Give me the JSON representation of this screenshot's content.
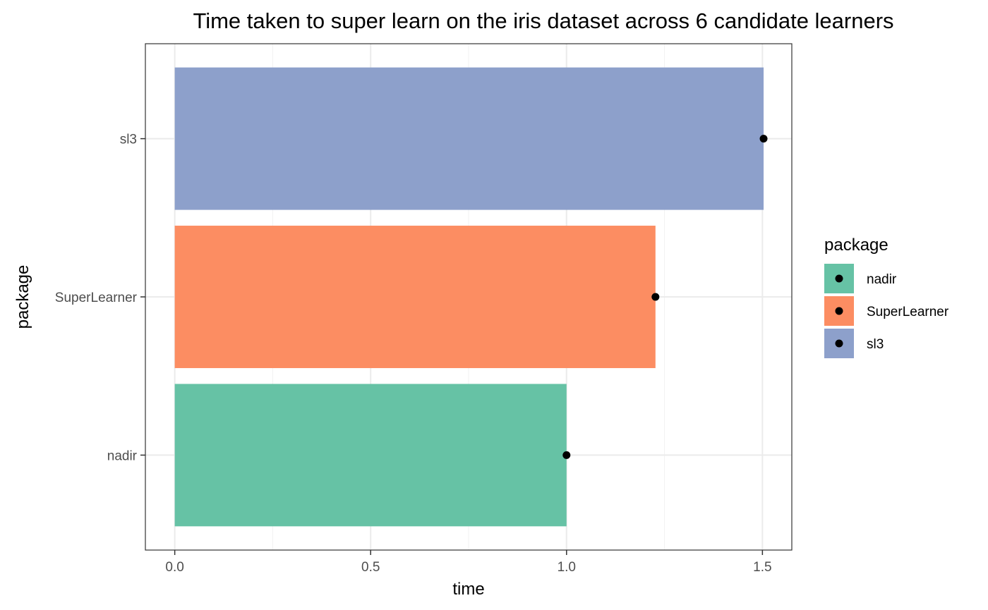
{
  "chart_data": {
    "type": "bar",
    "orientation": "horizontal",
    "title": "Time taken to super learn on the iris dataset across 6 candidate learners",
    "xlabel": "time",
    "ylabel": "package",
    "xlim": [
      -0.075,
      1.575
    ],
    "x_ticks": [
      0.0,
      0.5,
      1.0,
      1.5
    ],
    "x_tick_labels": [
      "0.0",
      "0.5",
      "1.0",
      "1.5"
    ],
    "grid": true,
    "categories": [
      "nadir",
      "SuperLearner",
      "sl3"
    ],
    "values": [
      1.0,
      1.227,
      1.503
    ],
    "points": [
      1.0,
      1.227,
      1.503
    ],
    "colors": [
      "#66c2a5",
      "#fc8d62",
      "#8da0cb"
    ],
    "legend": {
      "title": "package",
      "position": "right",
      "entries": [
        "nadir",
        "SuperLearner",
        "sl3"
      ]
    }
  }
}
